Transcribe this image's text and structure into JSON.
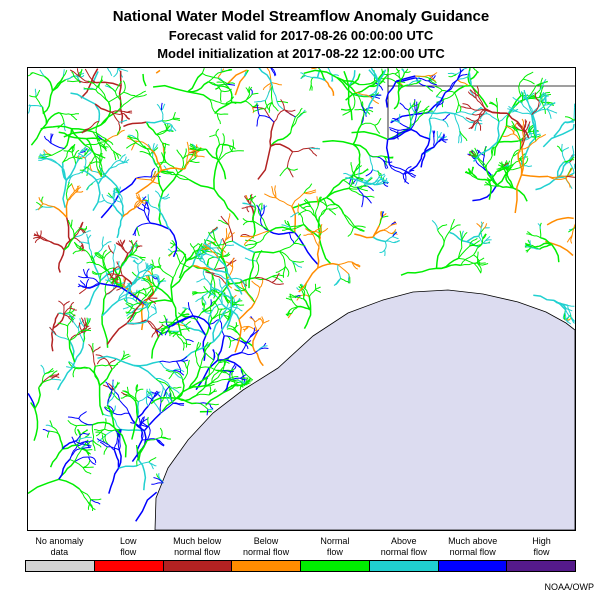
{
  "title": {
    "main": "National Water Model Streamflow Anomaly Guidance",
    "forecast": "Forecast valid for 2017-08-26 00:00:00 UTC",
    "init": "Model initialization at 2017-08-22 12:00:00 UTC"
  },
  "colors": {
    "no_anomaly": "#d3d3d3",
    "low": "#ff0000",
    "much_below": "#b22222",
    "below": "#ff8c00",
    "normal": "#00ee00",
    "above": "#20d0d0",
    "much_above": "#0000ff",
    "high": "#551a8b",
    "gulf": "#dcdcf0"
  },
  "legend": [
    {
      "line1": "No anomaly",
      "line2": "data",
      "color": "#d3d3d3"
    },
    {
      "line1": "Low",
      "line2": "flow",
      "color": "#ff0000"
    },
    {
      "line1": "Much below",
      "line2": "normal flow",
      "color": "#b22222"
    },
    {
      "line1": "Below",
      "line2": "normal flow",
      "color": "#ff8c00"
    },
    {
      "line1": "Normal",
      "line2": "flow",
      "color": "#00ee00"
    },
    {
      "line1": "Above",
      "line2": "normal flow",
      "color": "#20d0d0"
    },
    {
      "line1": "Much above",
      "line2": "normal flow",
      "color": "#0000ff"
    },
    {
      "line1": "High",
      "line2": "flow",
      "color": "#551a8b"
    }
  ],
  "credit": "NOAA/OWP"
}
